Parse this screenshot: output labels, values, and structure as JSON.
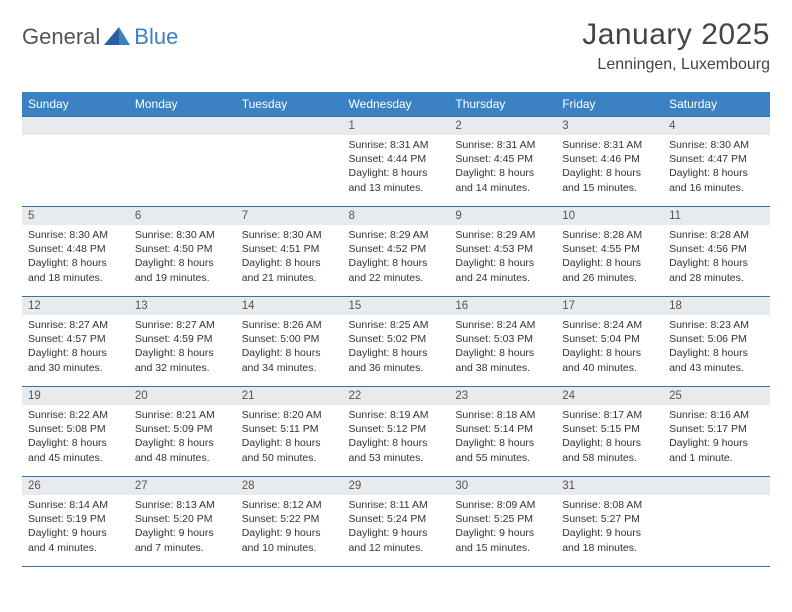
{
  "brand": {
    "part1": "General",
    "part2": "Blue"
  },
  "title": "January 2025",
  "location": "Lenningen, Luxembourg",
  "colors": {
    "header_bg": "#3b82c4",
    "header_text": "#ffffff",
    "daynum_bg": "#e8ebee",
    "border": "#3b6fa0",
    "brand_blue": "#3b7fc4",
    "text": "#333333",
    "title_color": "#444444"
  },
  "typography": {
    "base_font": "Arial",
    "title_size_pt": 22,
    "location_size_pt": 12,
    "dayhead_size_pt": 9,
    "cell_size_pt": 8
  },
  "weekdays": [
    "Sunday",
    "Monday",
    "Tuesday",
    "Wednesday",
    "Thursday",
    "Friday",
    "Saturday"
  ],
  "weeks": [
    [
      null,
      null,
      null,
      {
        "n": "1",
        "sr": "8:31 AM",
        "ss": "4:44 PM",
        "dl": "8 hours and 13 minutes."
      },
      {
        "n": "2",
        "sr": "8:31 AM",
        "ss": "4:45 PM",
        "dl": "8 hours and 14 minutes."
      },
      {
        "n": "3",
        "sr": "8:31 AM",
        "ss": "4:46 PM",
        "dl": "8 hours and 15 minutes."
      },
      {
        "n": "4",
        "sr": "8:30 AM",
        "ss": "4:47 PM",
        "dl": "8 hours and 16 minutes."
      }
    ],
    [
      {
        "n": "5",
        "sr": "8:30 AM",
        "ss": "4:48 PM",
        "dl": "8 hours and 18 minutes."
      },
      {
        "n": "6",
        "sr": "8:30 AM",
        "ss": "4:50 PM",
        "dl": "8 hours and 19 minutes."
      },
      {
        "n": "7",
        "sr": "8:30 AM",
        "ss": "4:51 PM",
        "dl": "8 hours and 21 minutes."
      },
      {
        "n": "8",
        "sr": "8:29 AM",
        "ss": "4:52 PM",
        "dl": "8 hours and 22 minutes."
      },
      {
        "n": "9",
        "sr": "8:29 AM",
        "ss": "4:53 PM",
        "dl": "8 hours and 24 minutes."
      },
      {
        "n": "10",
        "sr": "8:28 AM",
        "ss": "4:55 PM",
        "dl": "8 hours and 26 minutes."
      },
      {
        "n": "11",
        "sr": "8:28 AM",
        "ss": "4:56 PM",
        "dl": "8 hours and 28 minutes."
      }
    ],
    [
      {
        "n": "12",
        "sr": "8:27 AM",
        "ss": "4:57 PM",
        "dl": "8 hours and 30 minutes."
      },
      {
        "n": "13",
        "sr": "8:27 AM",
        "ss": "4:59 PM",
        "dl": "8 hours and 32 minutes."
      },
      {
        "n": "14",
        "sr": "8:26 AM",
        "ss": "5:00 PM",
        "dl": "8 hours and 34 minutes."
      },
      {
        "n": "15",
        "sr": "8:25 AM",
        "ss": "5:02 PM",
        "dl": "8 hours and 36 minutes."
      },
      {
        "n": "16",
        "sr": "8:24 AM",
        "ss": "5:03 PM",
        "dl": "8 hours and 38 minutes."
      },
      {
        "n": "17",
        "sr": "8:24 AM",
        "ss": "5:04 PM",
        "dl": "8 hours and 40 minutes."
      },
      {
        "n": "18",
        "sr": "8:23 AM",
        "ss": "5:06 PM",
        "dl": "8 hours and 43 minutes."
      }
    ],
    [
      {
        "n": "19",
        "sr": "8:22 AM",
        "ss": "5:08 PM",
        "dl": "8 hours and 45 minutes."
      },
      {
        "n": "20",
        "sr": "8:21 AM",
        "ss": "5:09 PM",
        "dl": "8 hours and 48 minutes."
      },
      {
        "n": "21",
        "sr": "8:20 AM",
        "ss": "5:11 PM",
        "dl": "8 hours and 50 minutes."
      },
      {
        "n": "22",
        "sr": "8:19 AM",
        "ss": "5:12 PM",
        "dl": "8 hours and 53 minutes."
      },
      {
        "n": "23",
        "sr": "8:18 AM",
        "ss": "5:14 PM",
        "dl": "8 hours and 55 minutes."
      },
      {
        "n": "24",
        "sr": "8:17 AM",
        "ss": "5:15 PM",
        "dl": "8 hours and 58 minutes."
      },
      {
        "n": "25",
        "sr": "8:16 AM",
        "ss": "5:17 PM",
        "dl": "9 hours and 1 minute."
      }
    ],
    [
      {
        "n": "26",
        "sr": "8:14 AM",
        "ss": "5:19 PM",
        "dl": "9 hours and 4 minutes."
      },
      {
        "n": "27",
        "sr": "8:13 AM",
        "ss": "5:20 PM",
        "dl": "9 hours and 7 minutes."
      },
      {
        "n": "28",
        "sr": "8:12 AM",
        "ss": "5:22 PM",
        "dl": "9 hours and 10 minutes."
      },
      {
        "n": "29",
        "sr": "8:11 AM",
        "ss": "5:24 PM",
        "dl": "9 hours and 12 minutes."
      },
      {
        "n": "30",
        "sr": "8:09 AM",
        "ss": "5:25 PM",
        "dl": "9 hours and 15 minutes."
      },
      {
        "n": "31",
        "sr": "8:08 AM",
        "ss": "5:27 PM",
        "dl": "9 hours and 18 minutes."
      },
      null
    ]
  ],
  "labels": {
    "sunrise": "Sunrise:",
    "sunset": "Sunset:",
    "daylight": "Daylight:"
  }
}
